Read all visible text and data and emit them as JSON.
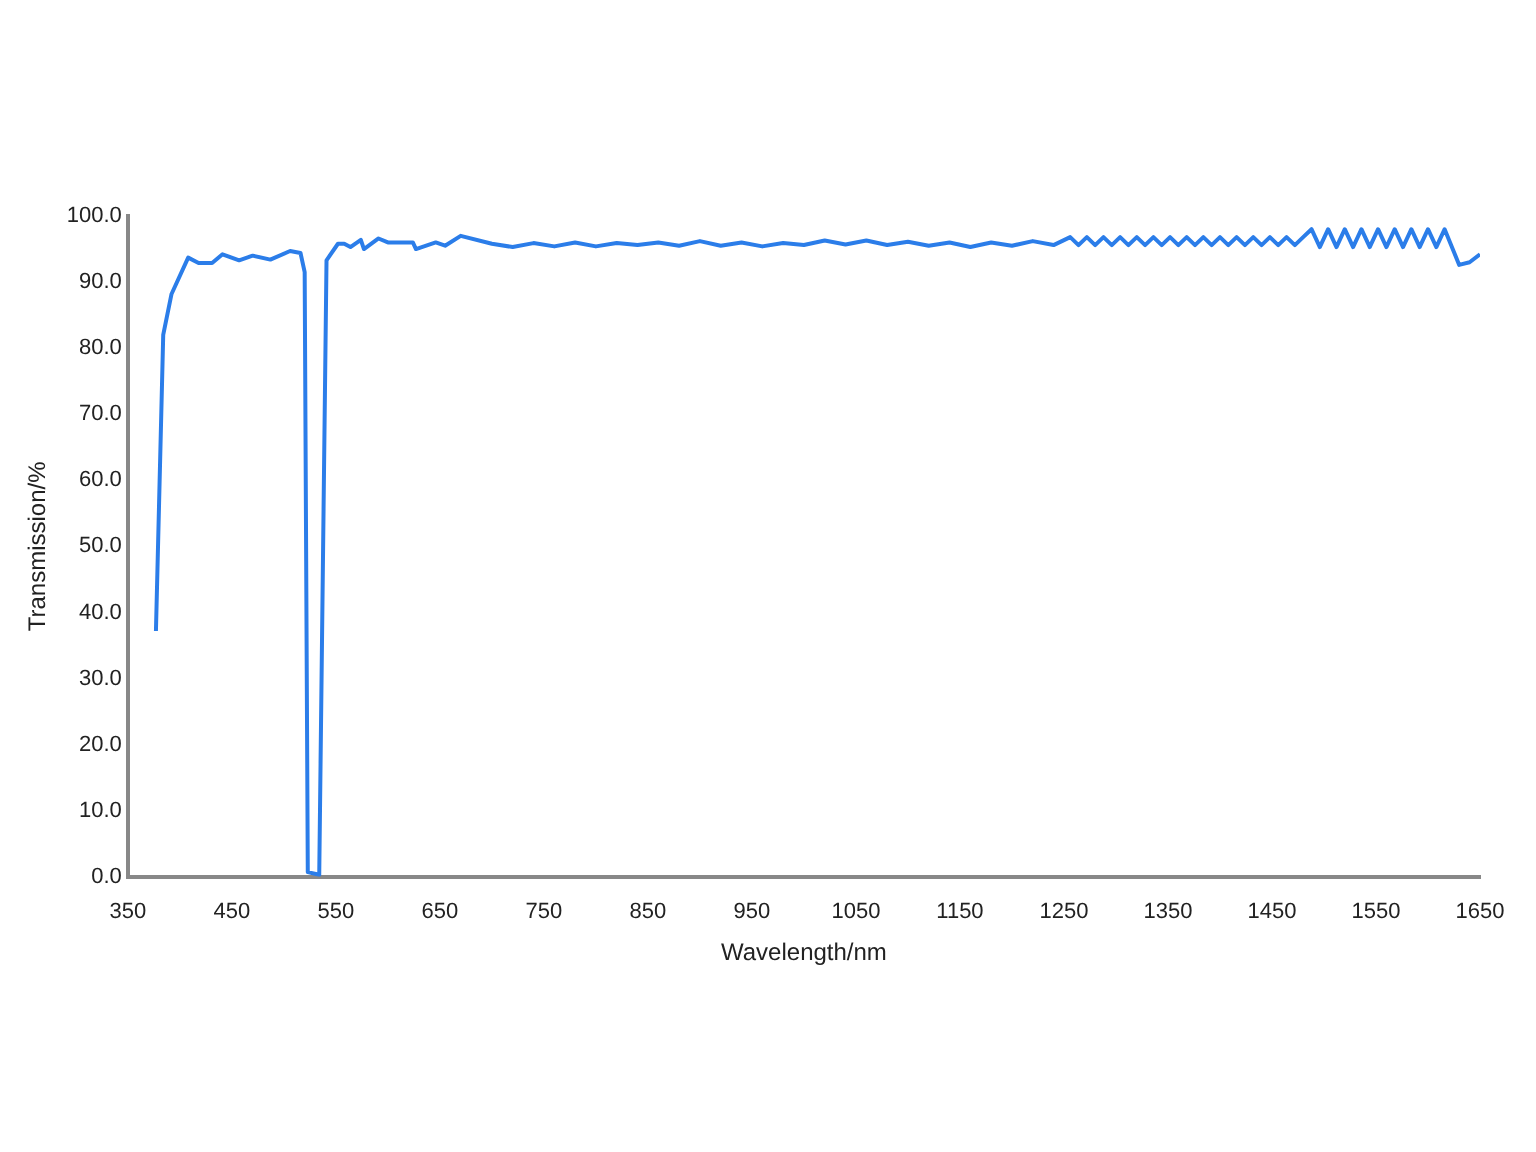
{
  "chart_data": {
    "type": "line",
    "xlabel": "Wavelength/nm",
    "ylabel": "Transmission/%",
    "color": "#2b7de9",
    "grid": false,
    "xlim": [
      350,
      1650
    ],
    "xticks": [
      350,
      450,
      550,
      650,
      750,
      850,
      950,
      1050,
      1150,
      1250,
      1350,
      1450,
      1550,
      1650
    ],
    "ylim": [
      0,
      100
    ],
    "yticks": [
      {
        "value": 0,
        "label": "0.0"
      },
      {
        "value": 10,
        "label": "10.0"
      },
      {
        "value": 20,
        "label": "20.0"
      },
      {
        "value": 30,
        "label": "30.0"
      },
      {
        "value": 40,
        "label": "40.0"
      },
      {
        "value": 50,
        "label": "50.0"
      },
      {
        "value": 60,
        "label": "60.0"
      },
      {
        "value": 70,
        "label": "70.0"
      },
      {
        "value": 80,
        "label": "80.0"
      },
      {
        "value": 90,
        "label": "90.0"
      },
      {
        "value": 100,
        "label": "100.0"
      }
    ],
    "x": [
      377,
      384,
      392,
      408,
      418,
      431,
      441,
      457,
      470,
      487,
      506,
      516,
      520,
      523,
      534,
      541,
      552,
      558,
      564,
      574,
      577,
      591,
      600,
      624,
      627,
      646,
      655,
      670,
      700,
      720,
      740,
      760,
      780,
      800,
      820,
      840,
      860,
      880,
      900,
      920,
      940,
      960,
      980,
      1000,
      1020,
      1040,
      1060,
      1080,
      1100,
      1120,
      1140,
      1160,
      1180,
      1200,
      1220,
      1240,
      1256,
      1264,
      1272,
      1280,
      1288,
      1296,
      1304,
      1312,
      1320,
      1328,
      1336,
      1344,
      1352,
      1360,
      1368,
      1376,
      1384,
      1392,
      1400,
      1408,
      1416,
      1424,
      1432,
      1440,
      1448,
      1456,
      1464,
      1472,
      1480,
      1488,
      1496,
      1504,
      1512,
      1520,
      1528,
      1536,
      1544,
      1552,
      1560,
      1568,
      1576,
      1584,
      1592,
      1600,
      1608,
      1616,
      1630,
      1640,
      1650
    ],
    "values": [
      37.2,
      82,
      88.2,
      93.7,
      92.9,
      92.9,
      94.2,
      93.3,
      94,
      93.4,
      94.7,
      94.4,
      91.5,
      0.7,
      0.3,
      93.3,
      95.8,
      95.8,
      95.3,
      96.4,
      95,
      96.6,
      96,
      96,
      95,
      96,
      95.5,
      97,
      95.8,
      95.3,
      95.9,
      95.4,
      96,
      95.4,
      95.9,
      95.6,
      96,
      95.5,
      96.2,
      95.5,
      96,
      95.4,
      95.9,
      95.6,
      96.3,
      95.7,
      96.3,
      95.6,
      96.1,
      95.5,
      96,
      95.3,
      96,
      95.5,
      96.2,
      95.6,
      96.8,
      95.6,
      96.8,
      95.6,
      96.8,
      95.6,
      96.8,
      95.6,
      96.8,
      95.6,
      96.8,
      95.6,
      96.8,
      95.6,
      96.8,
      95.6,
      96.8,
      95.6,
      96.8,
      95.6,
      96.8,
      95.6,
      96.8,
      95.6,
      96.8,
      95.6,
      96.8,
      95.6,
      96.8,
      98,
      95.3,
      98,
      95.3,
      98,
      95.3,
      98,
      95.3,
      98,
      95.3,
      98,
      95.3,
      98,
      95.3,
      98,
      95.3,
      98,
      92.6,
      93,
      94.2
    ]
  }
}
